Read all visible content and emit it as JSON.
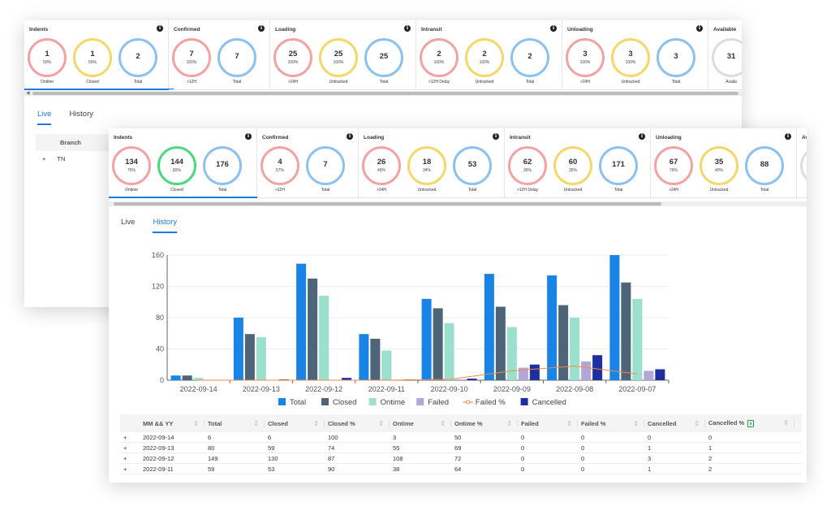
{
  "back_window": {
    "groups": [
      {
        "title": "Indents",
        "circles": [
          {
            "value": "1",
            "pct": "50%",
            "label": "Ontime",
            "color": "red"
          },
          {
            "value": "1",
            "pct": "50%",
            "label": "Closed",
            "color": "yellow"
          },
          {
            "value": "2",
            "pct": "",
            "label": "Total",
            "color": "blue"
          }
        ]
      },
      {
        "title": "Confirmed",
        "circles": [
          {
            "value": "7",
            "pct": "100%",
            "label": ">12H",
            "color": "red"
          },
          {
            "value": "7",
            "pct": "",
            "label": "Total",
            "color": "blue"
          }
        ]
      },
      {
        "title": "Loading",
        "circles": [
          {
            "value": "25",
            "pct": "100%",
            "label": ">24H",
            "color": "red"
          },
          {
            "value": "25",
            "pct": "100%",
            "label": "Untracked",
            "color": "yellow"
          },
          {
            "value": "25",
            "pct": "",
            "label": "Total",
            "color": "blue"
          }
        ]
      },
      {
        "title": "Intransit",
        "circles": [
          {
            "value": "2",
            "pct": "100%",
            "label": ">12H Delay",
            "color": "red"
          },
          {
            "value": "2",
            "pct": "100%",
            "label": "Untracked",
            "color": "yellow"
          },
          {
            "value": "2",
            "pct": "",
            "label": "Total",
            "color": "blue"
          }
        ]
      },
      {
        "title": "Unloading",
        "circles": [
          {
            "value": "3",
            "pct": "100%",
            "label": ">24H",
            "color": "red"
          },
          {
            "value": "3",
            "pct": "100%",
            "label": "Untracked",
            "color": "yellow"
          },
          {
            "value": "3",
            "pct": "",
            "label": "Total",
            "color": "blue"
          }
        ]
      },
      {
        "title": "Available",
        "circles": [
          {
            "value": "31",
            "pct": "",
            "label": "Availa",
            "color": "grey"
          }
        ]
      }
    ],
    "tabs": {
      "live": "Live",
      "history": "History"
    },
    "table": {
      "header": "Branch",
      "rows": [
        {
          "expand": "+",
          "branch": "TN"
        }
      ]
    }
  },
  "front_window": {
    "groups": [
      {
        "title": "Indents",
        "circles": [
          {
            "value": "134",
            "pct": "76%",
            "label": "Ontime",
            "color": "red"
          },
          {
            "value": "144",
            "pct": "82%",
            "label": "Closed",
            "color": "green"
          },
          {
            "value": "176",
            "pct": "",
            "label": "Total",
            "color": "blue"
          }
        ]
      },
      {
        "title": "Confirmed",
        "circles": [
          {
            "value": "4",
            "pct": "57%",
            "label": ">12H",
            "color": "red"
          },
          {
            "value": "7",
            "pct": "",
            "label": "Total",
            "color": "blue"
          }
        ]
      },
      {
        "title": "Loading",
        "circles": [
          {
            "value": "26",
            "pct": "49%",
            "label": ">24H",
            "color": "red"
          },
          {
            "value": "18",
            "pct": "34%",
            "label": "Untracked",
            "color": "yellow"
          },
          {
            "value": "53",
            "pct": "",
            "label": "Total",
            "color": "blue"
          }
        ]
      },
      {
        "title": "Intransit",
        "circles": [
          {
            "value": "62",
            "pct": "36%",
            "label": ">12H Delay",
            "color": "red"
          },
          {
            "value": "60",
            "pct": "35%",
            "label": "Untracked",
            "color": "yellow"
          },
          {
            "value": "171",
            "pct": "",
            "label": "Total",
            "color": "blue"
          }
        ]
      },
      {
        "title": "Unloading",
        "circles": [
          {
            "value": "67",
            "pct": "76%",
            "label": ">24H",
            "color": "red"
          },
          {
            "value": "35",
            "pct": "40%",
            "label": "Untracked",
            "color": "yellow"
          },
          {
            "value": "88",
            "pct": "",
            "label": "Total",
            "color": "blue"
          }
        ]
      },
      {
        "title": "Av",
        "circles": [
          {
            "value": "",
            "pct": "",
            "label": "",
            "color": "grey"
          }
        ]
      }
    ],
    "tabs": {
      "live": "Live",
      "history": "History"
    },
    "table": {
      "columns": [
        "MM && YY",
        "Total",
        "Closed",
        "Closed %",
        "Ontime",
        "Ontime %",
        "Failed",
        "Failed %",
        "Cancelled",
        "Cancelled %"
      ],
      "rows": [
        {
          "expand": "+",
          "cells": [
            "2022-09-14",
            "6",
            "6",
            "100",
            "3",
            "50",
            "0",
            "0",
            "0",
            "0"
          ]
        },
        {
          "expand": "+",
          "cells": [
            "2022-09-13",
            "80",
            "59",
            "74",
            "55",
            "69",
            "0",
            "0",
            "1",
            "1"
          ]
        },
        {
          "expand": "+",
          "cells": [
            "2022-09-12",
            "149",
            "130",
            "87",
            "108",
            "72",
            "0",
            "0",
            "3",
            "2"
          ]
        },
        {
          "expand": "+",
          "cells": [
            "2022-09-11",
            "59",
            "53",
            "90",
            "38",
            "64",
            "0",
            "0",
            "1",
            "2"
          ]
        }
      ]
    }
  },
  "colors": {
    "red": "#f2a3a3",
    "yellow": "#f5d76a",
    "blue": "#8cc2f2",
    "green": "#4cd97c",
    "accent": "#1f7ae0"
  },
  "chart_data": {
    "type": "bar",
    "categories": [
      "2022-09-14",
      "2022-09-13",
      "2022-09-12",
      "2022-09-11",
      "2022-09-10",
      "2022-09-09",
      "2022-09-08",
      "2022-09-07"
    ],
    "series": [
      {
        "name": "Total",
        "type": "bar",
        "color": "#1a84e6",
        "values": [
          6,
          80,
          149,
          59,
          104,
          136,
          134,
          160
        ]
      },
      {
        "name": "Closed",
        "type": "bar",
        "color": "#4e6579",
        "values": [
          6,
          59,
          130,
          53,
          92,
          94,
          96,
          125
        ]
      },
      {
        "name": "Ontime",
        "type": "bar",
        "color": "#9be0cd",
        "values": [
          3,
          55,
          108,
          38,
          73,
          68,
          80,
          104
        ]
      },
      {
        "name": "Failed",
        "type": "bar",
        "color": "#b3a7d8",
        "values": [
          0,
          0,
          0,
          0,
          1,
          16,
          24,
          12
        ]
      },
      {
        "name": "Failed %",
        "type": "line",
        "color": "#f08a4b",
        "values": [
          0,
          0,
          0,
          0,
          1,
          12,
          18,
          8
        ]
      },
      {
        "name": "Cancelled",
        "type": "bar",
        "color": "#1f2f9e",
        "values": [
          0,
          1,
          3,
          1,
          2,
          20,
          32,
          14
        ]
      }
    ],
    "yticks": [
      0,
      40,
      80,
      120,
      160
    ],
    "ylim": [
      0,
      160
    ],
    "legend": "bottom"
  }
}
